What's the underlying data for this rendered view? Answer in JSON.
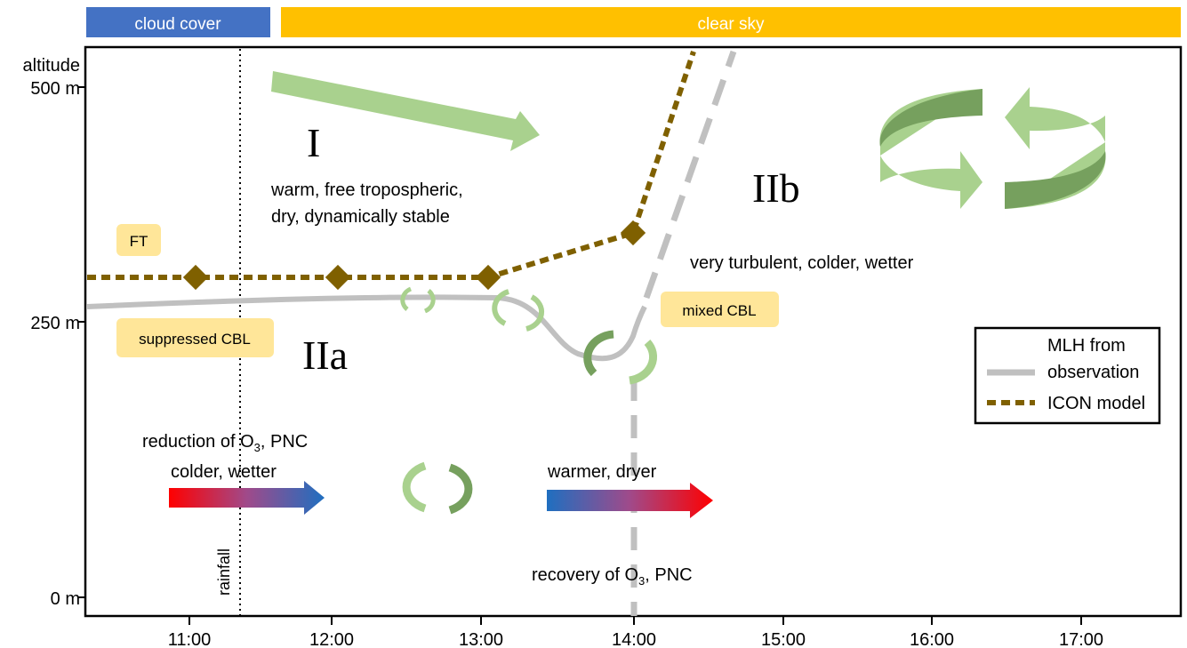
{
  "bars": {
    "cloud_label": "cloud cover",
    "clear_label": "clear sky",
    "cloud_color": "#4472C4",
    "clear_color": "#FFC000"
  },
  "axes": {
    "y_title": "altitude",
    "y_ticks": [
      "500 m",
      "250 m",
      "0 m"
    ],
    "x_ticks": [
      "11:00",
      "12:00",
      "13:00",
      "14:00",
      "15:00",
      "16:00",
      "17:00"
    ]
  },
  "regions": {
    "I_label": "I",
    "I_desc_line1": "warm, free tropospheric,",
    "I_desc_line2": "dry, dynamically stable",
    "IIa_label": "IIa",
    "IIb_label": "IIb",
    "IIb_desc": "very turbulent, colder, wetter"
  },
  "tags": {
    "ft": "FT",
    "suppressed": "suppressed CBL",
    "mixed": "mixed CBL",
    "tag_color": "#FFE699"
  },
  "events": {
    "reduction_prefix": "reduction of O",
    "reduction_sub": "3",
    "reduction_suffix": ", PNC",
    "colder_wetter": "colder, wetter",
    "warmer_dryer": "warmer, dryer",
    "recovery_prefix": "recovery of O",
    "recovery_sub": "3",
    "recovery_suffix": ", PNC",
    "rainfall": "rainfall"
  },
  "legend": {
    "title_line1": "MLH from",
    "obs_label": "observation",
    "icon_label": "ICON model",
    "obs_color": "#C0C0C0",
    "icon_color": "#7F6000"
  },
  "icons": {
    "arrow": "large-green-arrow",
    "circulation": "green-circular-arrows-icon"
  },
  "chart_data": {
    "type": "line",
    "x_unit": "time of day",
    "y_unit": "m",
    "ylim": [
      0,
      500
    ],
    "series": [
      {
        "name": "observation",
        "points": [
          [
            "10:20",
            262
          ],
          [
            "11:00",
            268
          ],
          [
            "12:00",
            273
          ],
          [
            "13:00",
            272
          ],
          [
            "13:20",
            262
          ],
          [
            "13:35",
            228
          ],
          [
            "13:50",
            220
          ],
          [
            "14:00",
            244
          ],
          [
            "14:10",
            360
          ],
          [
            "14:30",
            500
          ]
        ]
      },
      {
        "name": "ICON model",
        "points": [
          [
            "10:20",
            300
          ],
          [
            "11:00",
            300
          ],
          [
            "12:00",
            300
          ],
          [
            "13:00",
            300
          ],
          [
            "13:57",
            340
          ],
          [
            "14:20",
            500
          ]
        ]
      }
    ]
  }
}
